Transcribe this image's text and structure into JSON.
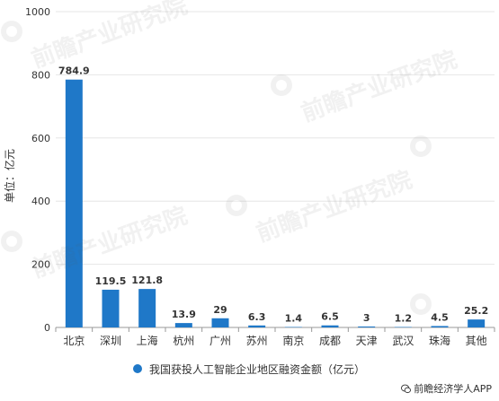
{
  "chart_data": {
    "type": "bar",
    "categories": [
      "北京",
      "深圳",
      "上海",
      "杭州",
      "广州",
      "苏州",
      "南京",
      "成都",
      "天津",
      "武汉",
      "珠海",
      "其他"
    ],
    "series": [
      {
        "name": "我国获投人工智能企业地区融资金额（亿元）",
        "values": [
          784.9,
          119.5,
          121.8,
          13.9,
          29,
          6.3,
          1.4,
          6.5,
          3,
          1.2,
          4.5,
          25.2
        ],
        "labels": [
          "784.9",
          "119.5",
          "121.8",
          "13.9",
          "29",
          "6.3",
          "1.4",
          "6.5",
          "3",
          "1.2",
          "4.5",
          "25.2"
        ]
      }
    ],
    "ylabel": "单位：亿元",
    "ylim": [
      0,
      1000
    ],
    "yticks": [
      0,
      200,
      400,
      600,
      800,
      1000
    ],
    "grid": true,
    "legend_position": "bottom"
  },
  "colors": {
    "bar": "#1f78c8",
    "grid": "#e6e6e6",
    "axis": "#999999",
    "text": "#333333"
  },
  "credit": {
    "text": "前瞻经济学人APP",
    "icon": "wechat-icon"
  },
  "watermark": {
    "text": "前瞻产业研究院"
  }
}
